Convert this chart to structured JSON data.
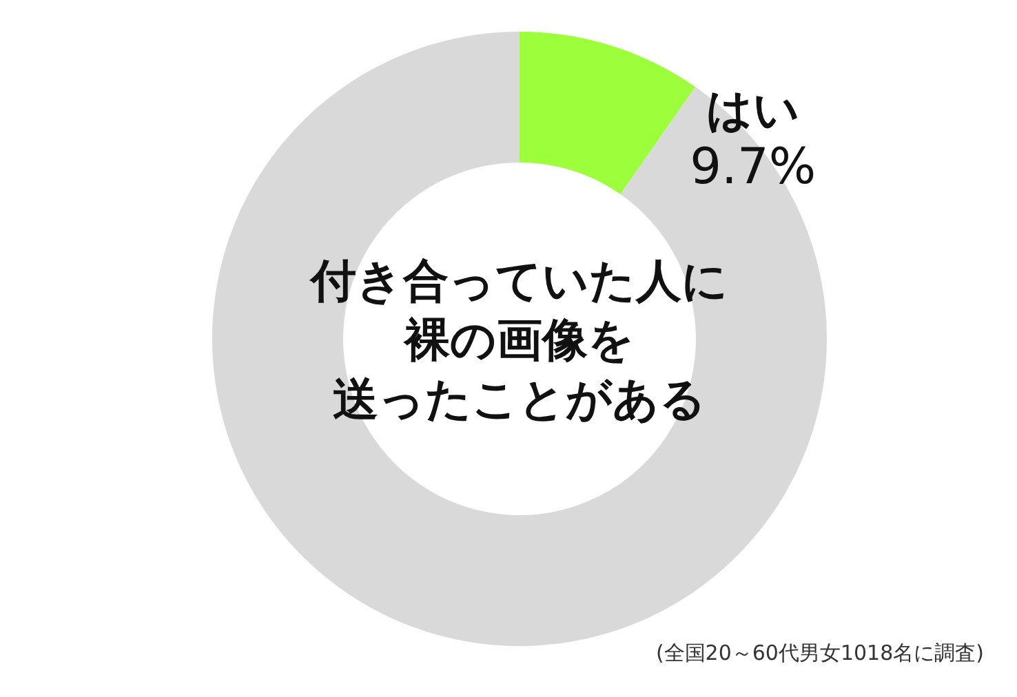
{
  "chart_data": {
    "type": "donut",
    "title": "付き合っていた人に裸の画像を送ったことがある",
    "categories": [
      "はい",
      null
    ],
    "values": [
      9.7,
      90.3
    ],
    "colors": [
      "#9dff3c",
      "#d9d9d9"
    ],
    "value_labels": [
      "9.7%",
      null
    ],
    "annotations": [
      "(全国20～60代男女1018名に調査)"
    ]
  }
}
